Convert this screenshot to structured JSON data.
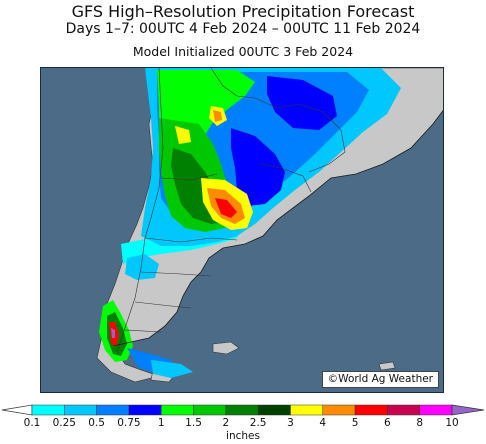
{
  "header": {
    "title": "GFS High–Resolution Precipitation Forecast",
    "subtitle": "Days 1–7: 00UTC 4 Feb 2024 – 00UTC 11 Feb 2024",
    "init": "Model Initialized 00UTC 3 Feb 2024"
  },
  "map": {
    "credit": "©World Ag Weather",
    "ocean_color": "#4b6b87",
    "land_color": "#c8c8c8"
  },
  "legend": {
    "ticks": [
      "0.1",
      "0.25",
      "0.5",
      "0.75",
      "1",
      "1.5",
      "2",
      "2.5",
      "3",
      "4",
      "5",
      "6",
      "8",
      "10"
    ],
    "units": "inches",
    "colors": [
      "#00ffff",
      "#00c8ff",
      "#0080ff",
      "#0000ff",
      "#00ff00",
      "#00c800",
      "#008000",
      "#004000",
      "#ffff00",
      "#ff8c00",
      "#ff0000",
      "#c80050",
      "#ff00ff",
      "#9664c8"
    ]
  }
}
